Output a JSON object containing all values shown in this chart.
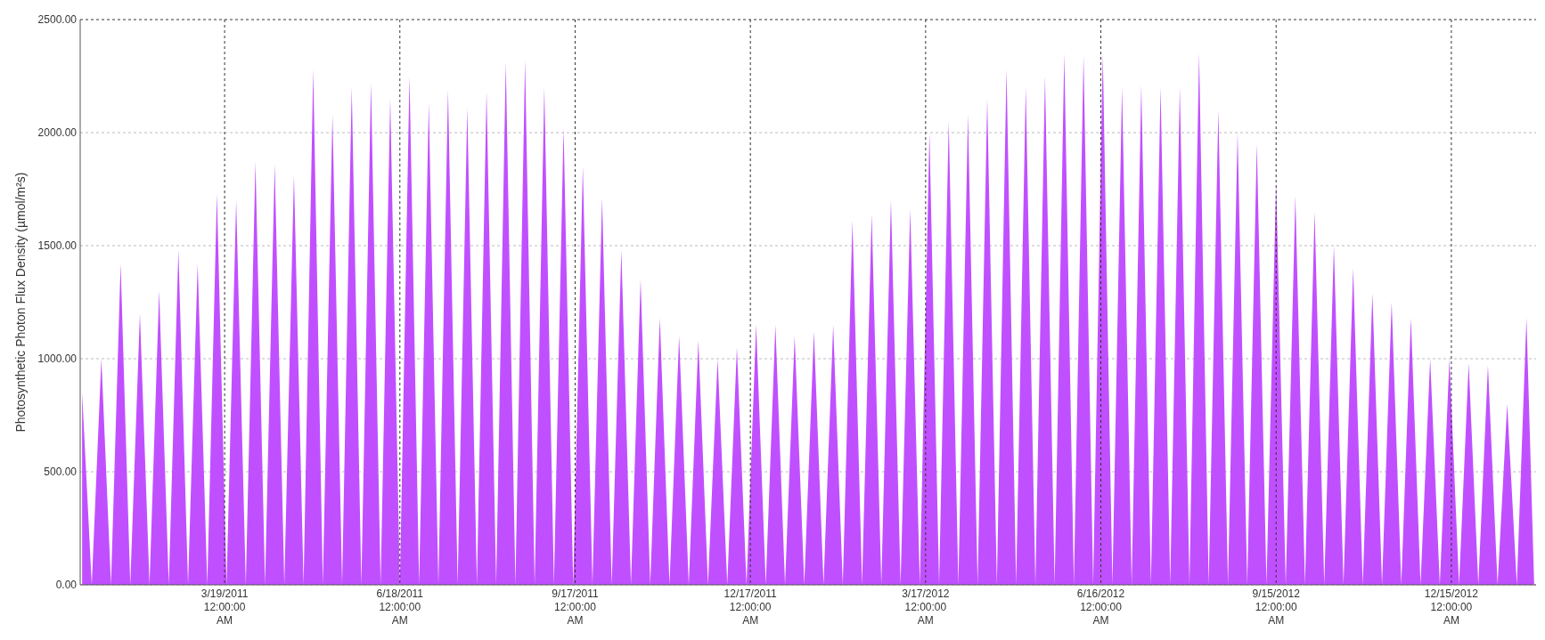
{
  "chart_data": {
    "type": "area",
    "ylabel": "Photosynthetic Photon Flux Density (µmol/m²s)",
    "xlim": [
      "2011-01-03",
      "2013-01-28"
    ],
    "xticks": [
      {
        "value": "2011-03-19",
        "label": "3/19/2011 12:00:00 AM"
      },
      {
        "value": "2011-06-18",
        "label": "6/18/2011 12:00:00 AM"
      },
      {
        "value": "2011-09-17",
        "label": "9/17/2011 12:00:00 AM"
      },
      {
        "value": "2011-12-17",
        "label": "12/17/2011 12:00:00 AM"
      },
      {
        "value": "2012-03-17",
        "label": "3/17/2012 12:00:00 AM"
      },
      {
        "value": "2012-06-16",
        "label": "6/16/2012 12:00:00 AM"
      },
      {
        "value": "2012-09-15",
        "label": "9/15/2012 12:00:00 AM"
      },
      {
        "value": "2012-12-15",
        "label": "12/15/2012 12:00:00 AM"
      }
    ],
    "ylim": [
      0,
      2500
    ],
    "yticks": [
      {
        "value": 0,
        "label": "0.00"
      },
      {
        "value": 500,
        "label": "500.00"
      },
      {
        "value": 1000,
        "label": "1000.00"
      },
      {
        "value": 1500,
        "label": "1500.00"
      },
      {
        "value": 2000,
        "label": "2000.00"
      },
      {
        "value": 2500,
        "label": "2500.00"
      }
    ],
    "grid": true,
    "x": [
      "2011-01-04",
      "2011-01-09",
      "2011-01-14",
      "2011-01-19",
      "2011-01-24",
      "2011-01-29",
      "2011-02-03",
      "2011-02-08",
      "2011-02-13",
      "2011-02-18",
      "2011-02-23",
      "2011-02-28",
      "2011-03-05",
      "2011-03-10",
      "2011-03-15",
      "2011-03-20",
      "2011-03-25",
      "2011-03-30",
      "2011-04-04",
      "2011-04-09",
      "2011-04-14",
      "2011-04-19",
      "2011-04-24",
      "2011-04-29",
      "2011-05-04",
      "2011-05-09",
      "2011-05-14",
      "2011-05-19",
      "2011-05-24",
      "2011-05-29",
      "2011-06-03",
      "2011-06-08",
      "2011-06-13",
      "2011-06-18",
      "2011-06-23",
      "2011-06-28",
      "2011-07-03",
      "2011-07-08",
      "2011-07-13",
      "2011-07-18",
      "2011-07-23",
      "2011-07-28",
      "2011-08-02",
      "2011-08-07",
      "2011-08-12",
      "2011-08-17",
      "2011-08-22",
      "2011-08-27",
      "2011-09-01",
      "2011-09-06",
      "2011-09-11",
      "2011-09-16",
      "2011-09-21",
      "2011-09-26",
      "2011-10-01",
      "2011-10-06",
      "2011-10-11",
      "2011-10-16",
      "2011-10-21",
      "2011-10-26",
      "2011-10-31",
      "2011-11-05",
      "2011-11-10",
      "2011-11-15",
      "2011-11-20",
      "2011-11-25",
      "2011-11-30",
      "2011-12-05",
      "2011-12-10",
      "2011-12-15",
      "2011-12-20",
      "2011-12-25",
      "2011-12-30",
      "2012-01-04",
      "2012-01-09",
      "2012-01-14",
      "2012-01-19",
      "2012-01-24",
      "2012-01-29",
      "2012-02-03",
      "2012-02-08",
      "2012-02-13",
      "2012-02-18",
      "2012-02-23",
      "2012-02-28",
      "2012-03-04",
      "2012-03-09",
      "2012-03-14",
      "2012-03-19",
      "2012-03-24",
      "2012-03-29",
      "2012-04-03",
      "2012-04-08",
      "2012-04-13",
      "2012-04-18",
      "2012-04-23",
      "2012-04-28",
      "2012-05-03",
      "2012-05-08",
      "2012-05-13",
      "2012-05-18",
      "2012-05-23",
      "2012-05-28",
      "2012-06-02",
      "2012-06-07",
      "2012-06-12",
      "2012-06-17",
      "2012-06-22",
      "2012-06-27",
      "2012-07-02",
      "2012-07-07",
      "2012-07-12",
      "2012-07-17",
      "2012-07-22",
      "2012-07-27",
      "2012-08-01",
      "2012-08-06",
      "2012-08-11",
      "2012-08-16",
      "2012-08-21",
      "2012-08-26",
      "2012-08-31",
      "2012-09-05",
      "2012-09-10",
      "2012-09-15",
      "2012-09-20",
      "2012-09-25",
      "2012-09-30",
      "2012-10-05",
      "2012-10-10",
      "2012-10-15",
      "2012-10-20",
      "2012-10-25",
      "2012-10-30",
      "2012-11-04",
      "2012-11-09",
      "2012-11-14",
      "2012-11-19",
      "2012-11-24",
      "2012-11-29",
      "2012-12-04",
      "2012-12-09",
      "2012-12-14",
      "2012-12-19",
      "2012-12-24",
      "2012-12-29",
      "2013-01-03",
      "2013-01-08",
      "2013-01-13",
      "2013-01-18",
      "2013-01-23",
      "2013-01-27"
    ],
    "series": [
      {
        "color": "#c050ff",
        "values": [
          850,
          0,
          1000,
          0,
          1420,
          0,
          1200,
          0,
          1300,
          0,
          1480,
          0,
          1420,
          0,
          1730,
          0,
          1700,
          0,
          1870,
          0,
          1860,
          0,
          1810,
          0,
          2280,
          0,
          2080,
          0,
          2200,
          0,
          2220,
          0,
          2150,
          0,
          2250,
          0,
          2130,
          0,
          2190,
          0,
          2110,
          0,
          2180,
          0,
          2310,
          0,
          2320,
          0,
          2200,
          0,
          2020,
          0,
          1850,
          0,
          1710,
          0,
          1480,
          0,
          1350,
          0,
          1180,
          0,
          1100,
          0,
          1080,
          0,
          1000,
          0,
          1050,
          0,
          1150,
          0,
          1150,
          0,
          1100,
          0,
          1120,
          0,
          1150,
          0,
          1610,
          0,
          1640,
          0,
          1700,
          0,
          1660,
          0,
          2000,
          0,
          2050,
          0,
          2080,
          0,
          2150,
          0,
          2280,
          0,
          2200,
          0,
          2250,
          0,
          2350,
          0,
          2340,
          0,
          2350,
          0,
          2200,
          0,
          2210,
          0,
          2200,
          0,
          2200,
          0,
          2350,
          0,
          2100,
          0,
          2000,
          0,
          1950,
          0,
          1780,
          0,
          1720,
          0,
          1650,
          0,
          1500,
          0,
          1400,
          0,
          1290,
          0,
          1250,
          0,
          1180,
          0,
          1000,
          0,
          1000,
          0,
          980,
          0,
          970,
          0,
          800,
          0,
          1180,
          0
        ]
      }
    ]
  }
}
